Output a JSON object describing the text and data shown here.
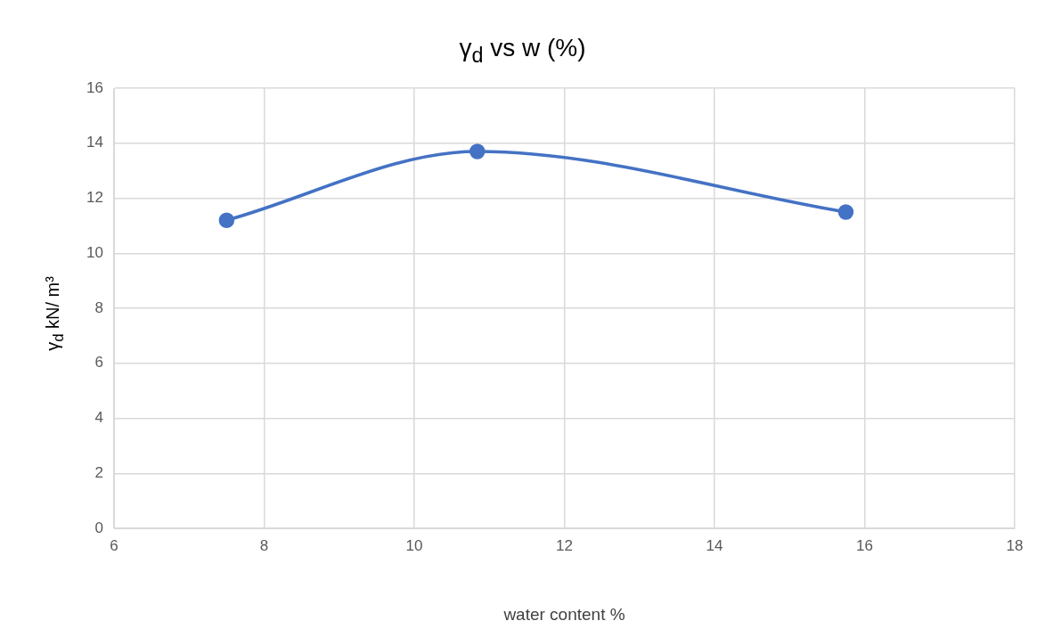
{
  "chart_data": {
    "type": "line",
    "title": "γ$_{d}$ vs w (%)",
    "xlabel": "water content %",
    "ylabel": "γ$_{d}$ kN/ m³",
    "x": [
      7.5,
      10.84,
      15.75
    ],
    "series": [
      {
        "color": "#4472c4",
        "values": [
          11.2,
          13.7,
          11.5
        ]
      }
    ],
    "xlim": [
      6,
      18
    ],
    "xticks": [
      6,
      8,
      10,
      12,
      14,
      16,
      18
    ],
    "ylim": [
      0,
      16
    ],
    "yticks": [
      0,
      2,
      4,
      6,
      8,
      10,
      12,
      14,
      16
    ],
    "grid": true,
    "legend": false,
    "marker": "circle",
    "line_style": "solid"
  }
}
